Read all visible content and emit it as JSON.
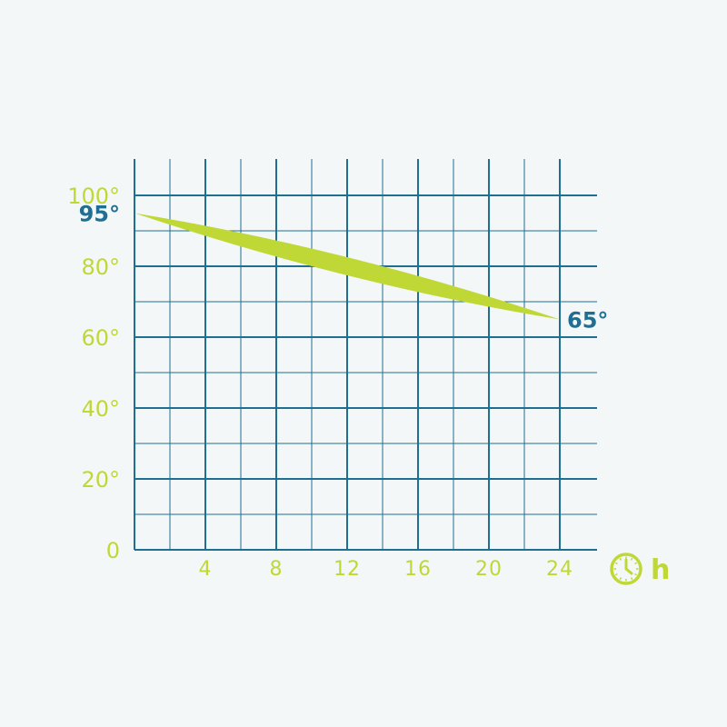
{
  "colors": {
    "grid": "#1e6f91",
    "accent": "#bfd835",
    "callout": "#1e6f91",
    "background": "#f4f7f8"
  },
  "chart_data": {
    "type": "area",
    "x": [
      0,
      24
    ],
    "y": [
      95,
      65
    ],
    "xlim": [
      0,
      26
    ],
    "ylim": [
      0,
      110
    ],
    "x_ticks": [
      "4",
      "8",
      "12",
      "16",
      "20",
      "24"
    ],
    "x_tick_values": [
      4,
      8,
      12,
      16,
      20,
      24
    ],
    "y_ticks": [
      "0",
      "20°",
      "40°",
      "60°",
      "80°",
      "100°"
    ],
    "y_tick_values": [
      0,
      20,
      40,
      60,
      80,
      100
    ],
    "annotations": [
      {
        "text": "95°",
        "x": 0,
        "y": 95
      },
      {
        "text": "65°",
        "x": 24,
        "y": 65
      }
    ],
    "x_unit": "h",
    "x_unit_icon": "clock-icon",
    "grid": true
  }
}
